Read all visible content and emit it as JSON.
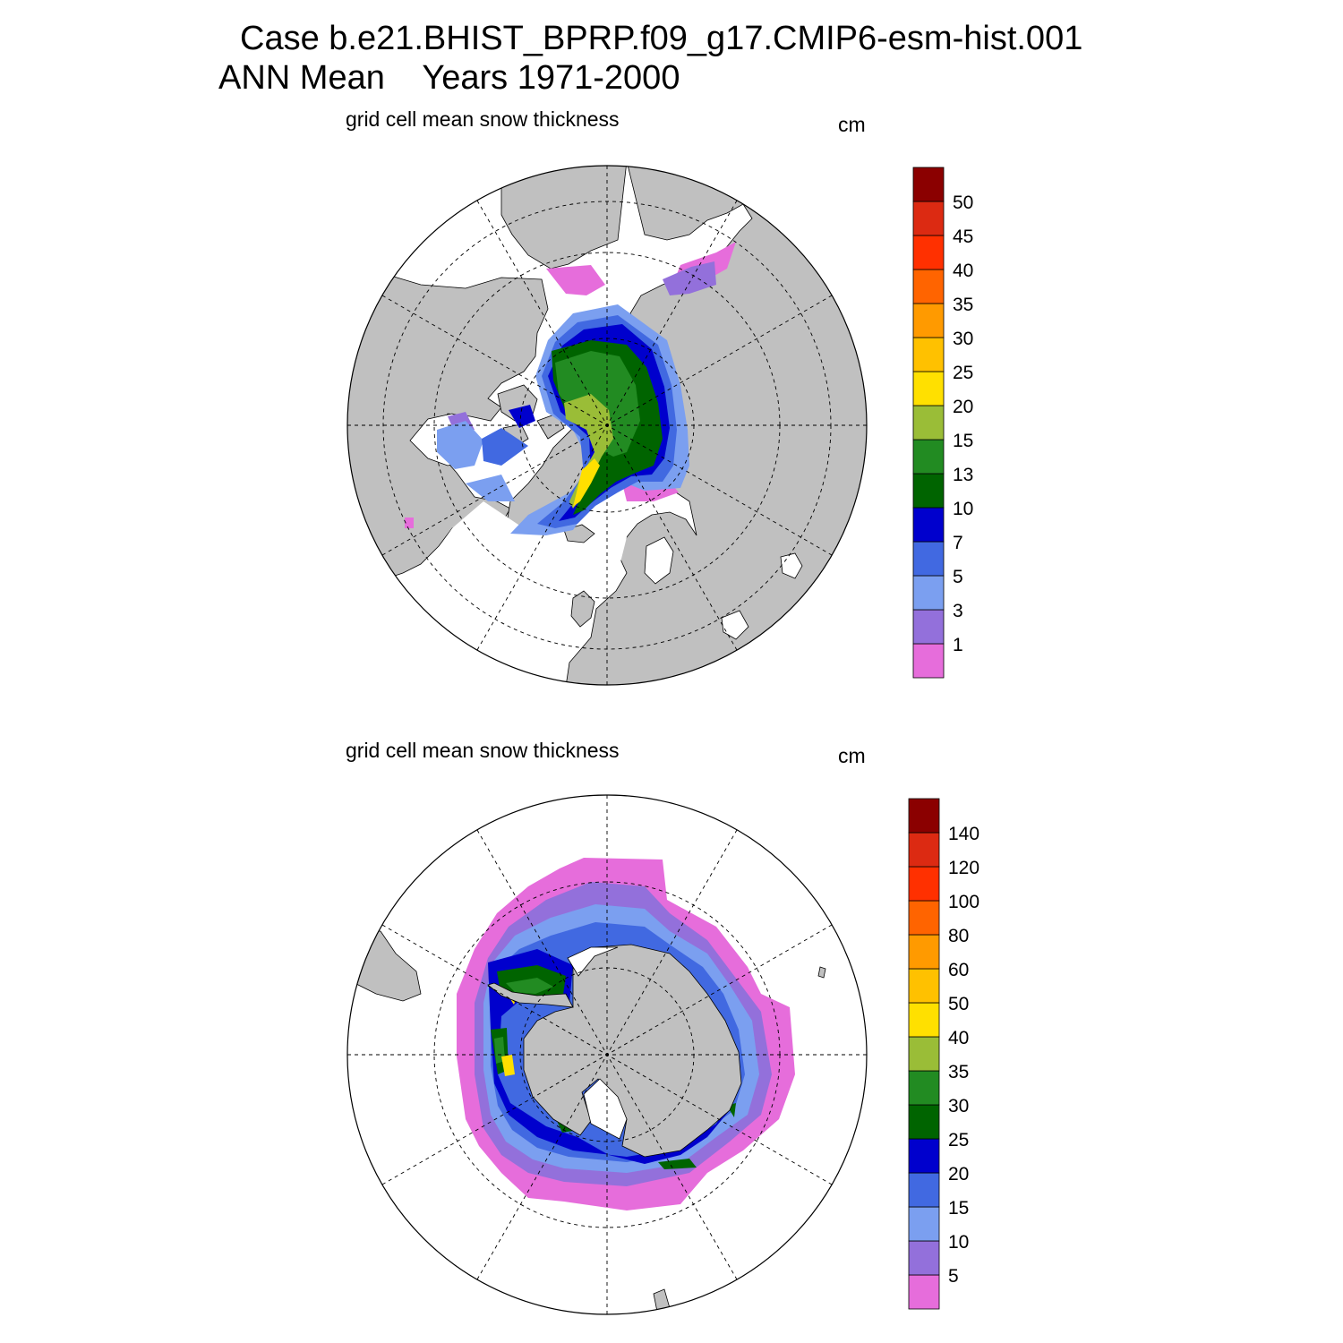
{
  "header": {
    "line1": "Case b.e21.BHIST_BPRP.f09_g17.CMIP6-esm-hist.001",
    "line2": "ANN Mean    Years 1971-2000"
  },
  "colors": {
    "land": "#c0c0c0",
    "ocean": "#ffffff",
    "scale": [
      "#e66ddb",
      "#9370db",
      "#7b9ff0",
      "#4169e1",
      "#0000cd",
      "#006400",
      "#228b22",
      "#9abd37",
      "#ffe000",
      "#ffc100",
      "#ff9a00",
      "#ff6400",
      "#ff3000",
      "#dc2a12",
      "#8b0000"
    ]
  },
  "maps": [
    {
      "id": "north",
      "hemisphere": "Arctic (north polar stereographic)",
      "field_label": "grid cell mean snow thickness",
      "units": "cm",
      "colorbar_levels": [
        "1",
        "3",
        "5",
        "7",
        "10",
        "13",
        "15",
        "20",
        "25",
        "30",
        "35",
        "40",
        "45",
        "50"
      ]
    },
    {
      "id": "south",
      "hemisphere": "Antarctic (south polar stereographic)",
      "field_label": "grid cell mean snow thickness",
      "units": "cm",
      "colorbar_levels": [
        "5",
        "10",
        "15",
        "20",
        "25",
        "30",
        "35",
        "40",
        "50",
        "60",
        "80",
        "100",
        "120",
        "140"
      ]
    }
  ]
}
